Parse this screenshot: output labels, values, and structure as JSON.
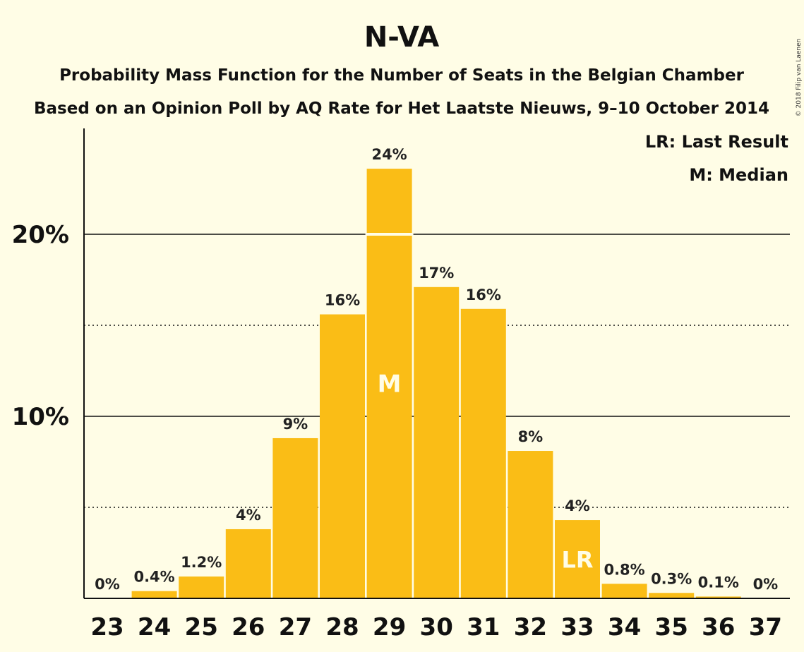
{
  "copyright": "© 2018 Filip van Laenen",
  "chart_data": {
    "type": "bar",
    "title": "N-VA",
    "subtitle": "Probability Mass Function for the Number of Seats in the Belgian Chamber",
    "subtitle2": "Based on an Opinion Poll by AQ Rate for Het Laatste Nieuws, 9–10 October 2014",
    "categories": [
      "23",
      "24",
      "25",
      "26",
      "27",
      "28",
      "29",
      "30",
      "31",
      "32",
      "33",
      "34",
      "35",
      "36",
      "37"
    ],
    "values": [
      0,
      0.4,
      1.2,
      3.8,
      8.8,
      15.6,
      23.6,
      17.1,
      15.9,
      8.1,
      4.3,
      0.8,
      0.3,
      0.1,
      0
    ],
    "data_labels": [
      "0%",
      "0.4%",
      "1.2%",
      "4%",
      "9%",
      "16%",
      "24%",
      "17%",
      "16%",
      "8%",
      "4%",
      "0.8%",
      "0.3%",
      "0.1%",
      "0%"
    ],
    "y_ticks": [
      {
        "value": 10,
        "label": "10%",
        "style": "solid"
      },
      {
        "value": 20,
        "label": "20%",
        "style": "solid"
      }
    ],
    "y_minor_lines": [
      5,
      15
    ],
    "ylim": [
      0,
      26
    ],
    "bar_color": "#FABD16",
    "median": {
      "category": "29",
      "marker": "M"
    },
    "last_result": {
      "category": "33",
      "marker": "LR"
    },
    "legend": {
      "placement": "top-right",
      "entries": [
        "LR: Last Result",
        "M: Median"
      ]
    }
  }
}
